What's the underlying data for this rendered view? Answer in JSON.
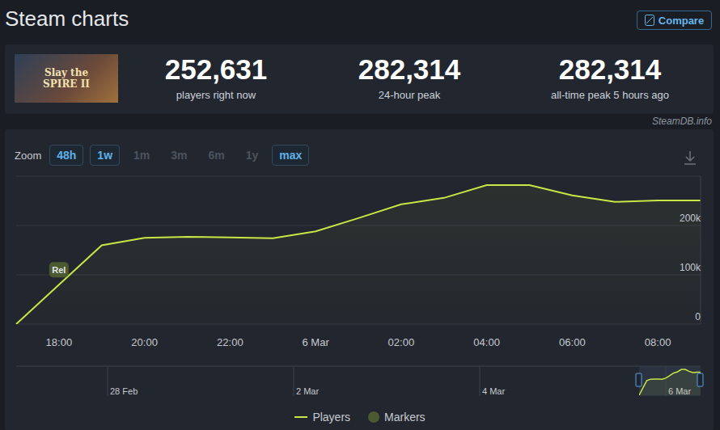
{
  "header": {
    "title": "Steam charts",
    "button": "Compare"
  },
  "logo_text": "Slay the SPIRE II",
  "stats": [
    {
      "value": "252,631",
      "label": "players right now"
    },
    {
      "value": "282,314",
      "label": "24-hour peak"
    },
    {
      "value": "282,314",
      "label": "all-time peak 5 hours ago"
    }
  ],
  "source": "SteamDB.info",
  "zoom": {
    "label": "Zoom",
    "options": [
      {
        "label": "48h",
        "active": true
      },
      {
        "label": "1w",
        "active": true
      },
      {
        "label": "1m",
        "active": false
      },
      {
        "label": "3m",
        "active": false
      },
      {
        "label": "6m",
        "active": false
      },
      {
        "label": "1y",
        "active": false
      },
      {
        "label": "max",
        "active": true
      }
    ]
  },
  "chart_data": {
    "type": "area",
    "categories": [
      null,
      "18:00",
      null,
      "20:00",
      null,
      "22:00",
      null,
      "6 Mar",
      null,
      "02:00",
      null,
      "04:00",
      null,
      "06:00",
      null,
      "08:00",
      null
    ],
    "series": [
      {
        "name": "Players",
        "color": "#c8e645",
        "values": [
          0,
          80000,
          160000,
          175000,
          177000,
          176000,
          174000,
          188000,
          215000,
          243000,
          256000,
          282000,
          282000,
          261000,
          248000,
          251000,
          251000
        ]
      }
    ],
    "ylim": [
      0,
      300000
    ],
    "yticks": [
      0,
      {
        "value": 100000,
        "label": "100k"
      },
      {
        "value": 200000,
        "label": "200k"
      }
    ],
    "grid": true,
    "legend": "bottom",
    "markers": [
      {
        "label": "Rel",
        "x": "18:00"
      }
    ],
    "marker_legend": "Markers"
  },
  "navigator": {
    "labels": [
      "28 Feb",
      "2 Mar",
      "4 Mar",
      "6 Mar"
    ]
  }
}
